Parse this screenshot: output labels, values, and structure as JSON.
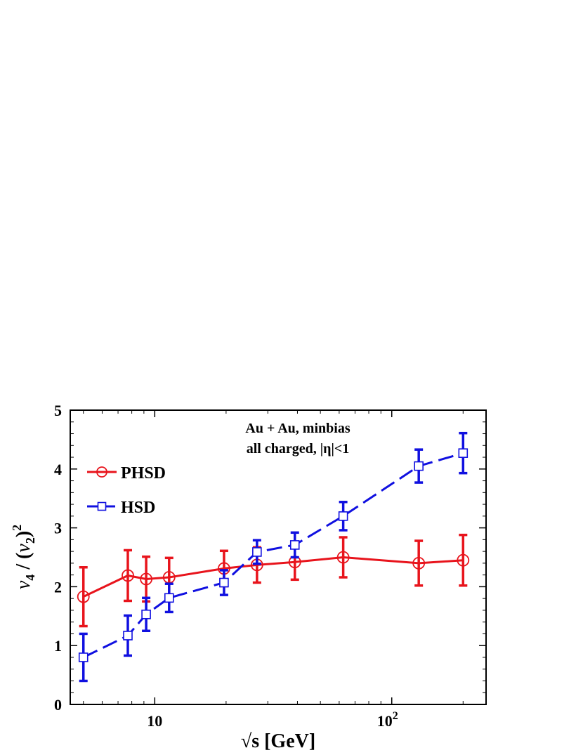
{
  "chart_data": {
    "type": "line",
    "xscale": "log",
    "xlim": [
      4.4,
      250
    ],
    "ylim": [
      0,
      5
    ],
    "ylabel": "v4 / (v2)^2",
    "ylabel_parts": {
      "v": "v",
      "sub1": "4",
      "mid": " / (",
      "sub2": "2",
      "close": ")",
      "sup": "2"
    },
    "xlabel": "√s  [GeV]",
    "xlabel_parts": {
      "root": "√",
      "rest": "s  [GeV]"
    },
    "x_ticks": [
      {
        "value": 10,
        "base": "10",
        "exp": ""
      },
      {
        "value": 100,
        "base": "10",
        "exp": "2"
      }
    ],
    "y_ticks": [
      0,
      1,
      2,
      3,
      4,
      5
    ],
    "annotations": [
      "Au + Au, minbias",
      "all charged, |η|<1"
    ],
    "legend_position": "upper-left",
    "series": [
      {
        "name": "PHSD",
        "color": "#e8141c",
        "marker": "circle",
        "line": "solid",
        "points": [
          {
            "x": 5.0,
            "y": 1.83,
            "err": 0.5
          },
          {
            "x": 7.7,
            "y": 2.19,
            "err": 0.43
          },
          {
            "x": 9.2,
            "y": 2.13,
            "err": 0.38
          },
          {
            "x": 11.5,
            "y": 2.16,
            "err": 0.33
          },
          {
            "x": 19.6,
            "y": 2.31,
            "err": 0.3
          },
          {
            "x": 27.0,
            "y": 2.37,
            "err": 0.3
          },
          {
            "x": 39.0,
            "y": 2.42,
            "err": 0.3
          },
          {
            "x": 62.4,
            "y": 2.5,
            "err": 0.34
          },
          {
            "x": 130.0,
            "y": 2.4,
            "err": 0.38
          },
          {
            "x": 200.0,
            "y": 2.45,
            "err": 0.43
          }
        ]
      },
      {
        "name": "HSD",
        "color": "#1010e0",
        "marker": "square",
        "line": "dashed",
        "points": [
          {
            "x": 5.0,
            "y": 0.8,
            "err": 0.4
          },
          {
            "x": 7.7,
            "y": 1.17,
            "err": 0.34
          },
          {
            "x": 9.2,
            "y": 1.53,
            "err": 0.28
          },
          {
            "x": 11.5,
            "y": 1.81,
            "err": 0.24
          },
          {
            "x": 19.6,
            "y": 2.07,
            "err": 0.21
          },
          {
            "x": 27.0,
            "y": 2.59,
            "err": 0.2
          },
          {
            "x": 39.0,
            "y": 2.71,
            "err": 0.21
          },
          {
            "x": 62.4,
            "y": 3.2,
            "err": 0.24
          },
          {
            "x": 130.0,
            "y": 4.05,
            "err": 0.28
          },
          {
            "x": 200.0,
            "y": 4.27,
            "err": 0.34
          }
        ]
      }
    ]
  }
}
